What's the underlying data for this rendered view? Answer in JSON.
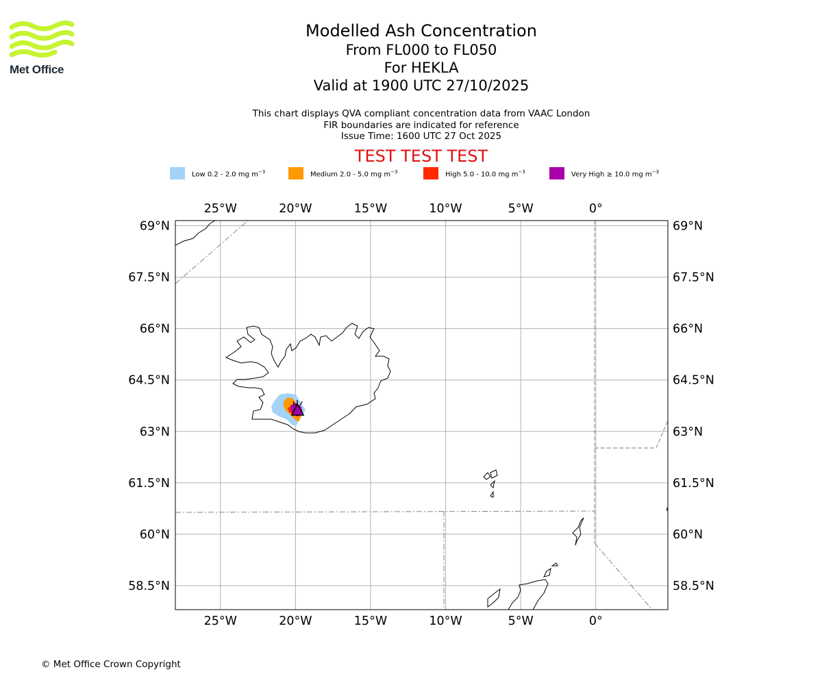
{
  "logo": {
    "name": "Met Office"
  },
  "title": {
    "main": "Modelled Ash Concentration",
    "levels": "From FL000 to FL050",
    "volcano": "For HEKLA",
    "valid": "Valid at 1900 UTC 27/10/2025"
  },
  "notes": {
    "line1": "This chart displays QVA compliant concentration data from VAAC London",
    "line2": "FIR boundaries are indicated for reference",
    "line3": "Issue Time: 1600 UTC 27 Oct 2025"
  },
  "test_banner": "TEST TEST TEST",
  "legend": [
    {
      "label": "Low 0.2 - 2.0 mg m",
      "unit_exp": "−3",
      "color": "#a3d3f7"
    },
    {
      "label": "Medium 2.0 - 5.0 mg m",
      "unit_exp": "−3",
      "color": "#ff9900"
    },
    {
      "label": "High 5.0 - 10.0 mg m",
      "unit_exp": "−3",
      "color": "#ff2a00"
    },
    {
      "label": "Very High  ≥  10.0 mg m",
      "unit_exp": "−3",
      "color": "#aa00aa"
    }
  ],
  "map": {
    "lon_range": [
      -28,
      4.8
    ],
    "lat_range": [
      57.8,
      69.15
    ],
    "lon_ticks": [
      -25,
      -20,
      -15,
      -10,
      -5,
      0
    ],
    "lat_ticks": [
      69,
      67.5,
      66,
      64.5,
      63,
      61.5,
      60,
      58.5
    ],
    "lon_labels": [
      "25°W",
      "20°W",
      "15°W",
      "10°W",
      "5°W",
      "0°"
    ],
    "lat_labels": [
      "69°N",
      "67.5°N",
      "66°N",
      "64.5°N",
      "63°N",
      "61.5°N",
      "60°N",
      "58.5°N"
    ],
    "volcano_location": [
      -19.66,
      63.99
    ]
  },
  "copyright": "© Met Office Crown Copyright"
}
